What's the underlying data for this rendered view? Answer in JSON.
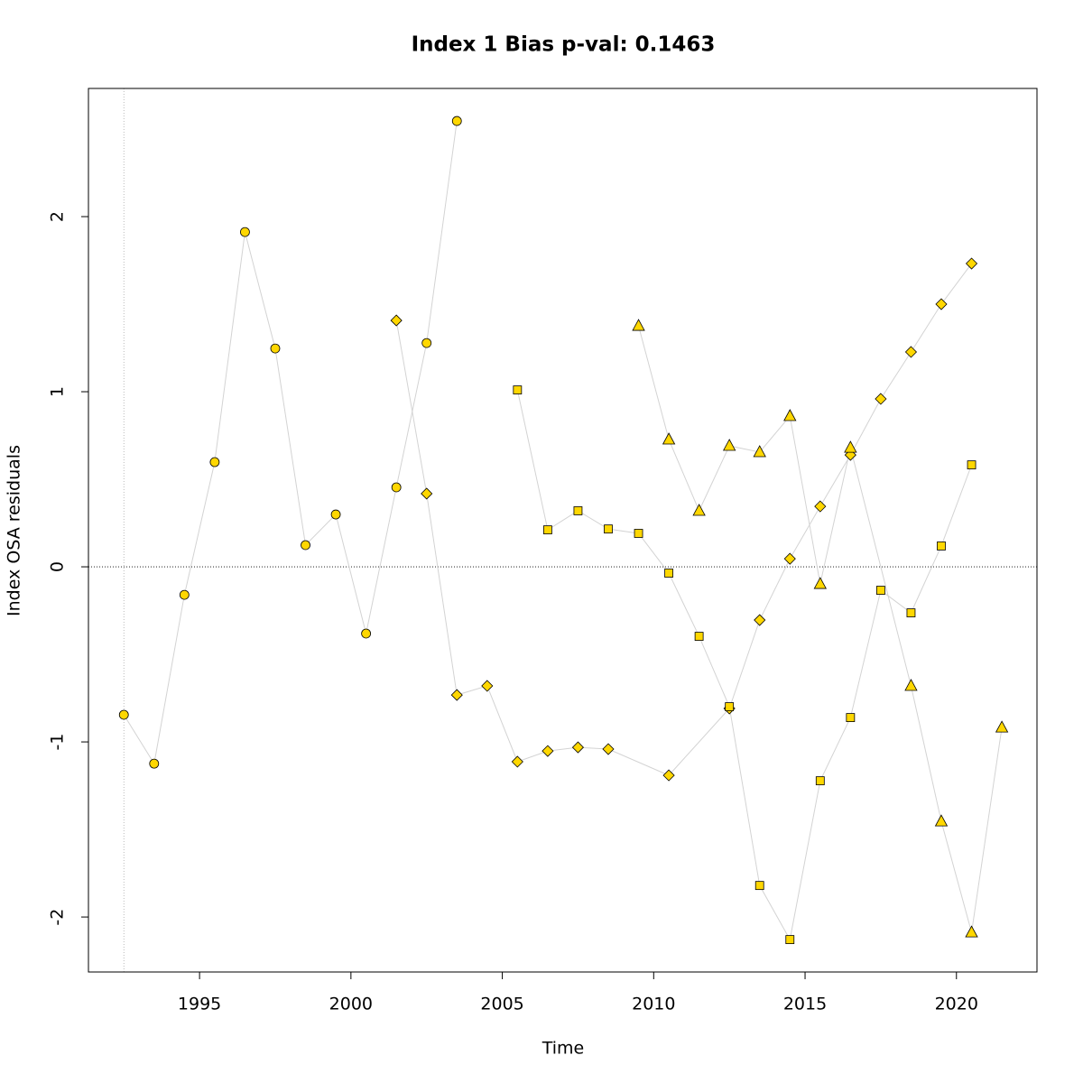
{
  "chart_data": {
    "type": "scatter-line",
    "title": "Index 1 Bias p-val: 0.1463",
    "title_color": "#228b22",
    "xlabel": "Time",
    "ylabel": "Index OSA residuals",
    "xlim": [
      1991.33,
      2022.66
    ],
    "ylim": [
      -2.314,
      2.732
    ],
    "xticks": [
      1995,
      2000,
      2005,
      2010,
      2015,
      2020
    ],
    "yticks": [
      -2,
      -1,
      0,
      1,
      2
    ],
    "hline": 0,
    "vline": 1992.5,
    "line_color": "#d3d3d3",
    "series": [
      {
        "marker": "circle",
        "color": "#ffd700",
        "x": [
          1992.5,
          1993.5,
          1994.5,
          1995.5,
          1996.5,
          1997.5,
          1998.5,
          1999.5,
          2000.5,
          2001.5,
          2002.5,
          2003.5
        ],
        "values": [
          -0.845,
          -1.124,
          -0.16,
          0.598,
          1.912,
          1.247,
          0.124,
          0.299,
          -0.381,
          0.454,
          1.278,
          2.546
        ]
      },
      {
        "marker": "diamond",
        "color": "#ffd700",
        "x": [
          2001.5,
          2002.5,
          2003.5,
          2004.5,
          2005.5,
          2006.5,
          2007.5,
          2008.5,
          2010.5,
          2012.5,
          2013.5,
          2014.5,
          2015.5,
          2016.5,
          2017.5,
          2018.5,
          2019.5,
          2020.5
        ],
        "values": [
          1.407,
          0.418,
          -0.732,
          -0.68,
          -1.113,
          -1.052,
          -1.031,
          -1.041,
          -1.191,
          -0.809,
          -0.304,
          0.046,
          0.345,
          0.639,
          0.959,
          1.227,
          1.5,
          1.732
        ]
      },
      {
        "marker": "square",
        "color": "#ffd700",
        "x": [
          2005.5,
          2006.5,
          2007.5,
          2008.5,
          2009.5,
          2010.5,
          2011.5,
          2012.5,
          2013.5,
          2014.5,
          2015.5,
          2016.5,
          2017.5,
          2018.5,
          2019.5,
          2020.5
        ],
        "values": [
          1.01,
          0.211,
          0.32,
          0.216,
          0.191,
          -0.036,
          -0.397,
          -0.799,
          -1.82,
          -2.129,
          -1.222,
          -0.861,
          -0.134,
          -0.263,
          0.119,
          0.582
        ]
      },
      {
        "marker": "triangle",
        "color": "#ffd700",
        "x": [
          2009.5,
          2010.5,
          2011.5,
          2012.5,
          2013.5,
          2014.5,
          2015.5,
          2016.5,
          2018.5,
          2019.5,
          2020.5,
          2021.5
        ],
        "values": [
          1.376,
          0.727,
          0.32,
          0.691,
          0.655,
          0.861,
          -0.098,
          0.68,
          -0.68,
          -1.454,
          -2.088,
          -0.918
        ]
      }
    ]
  }
}
